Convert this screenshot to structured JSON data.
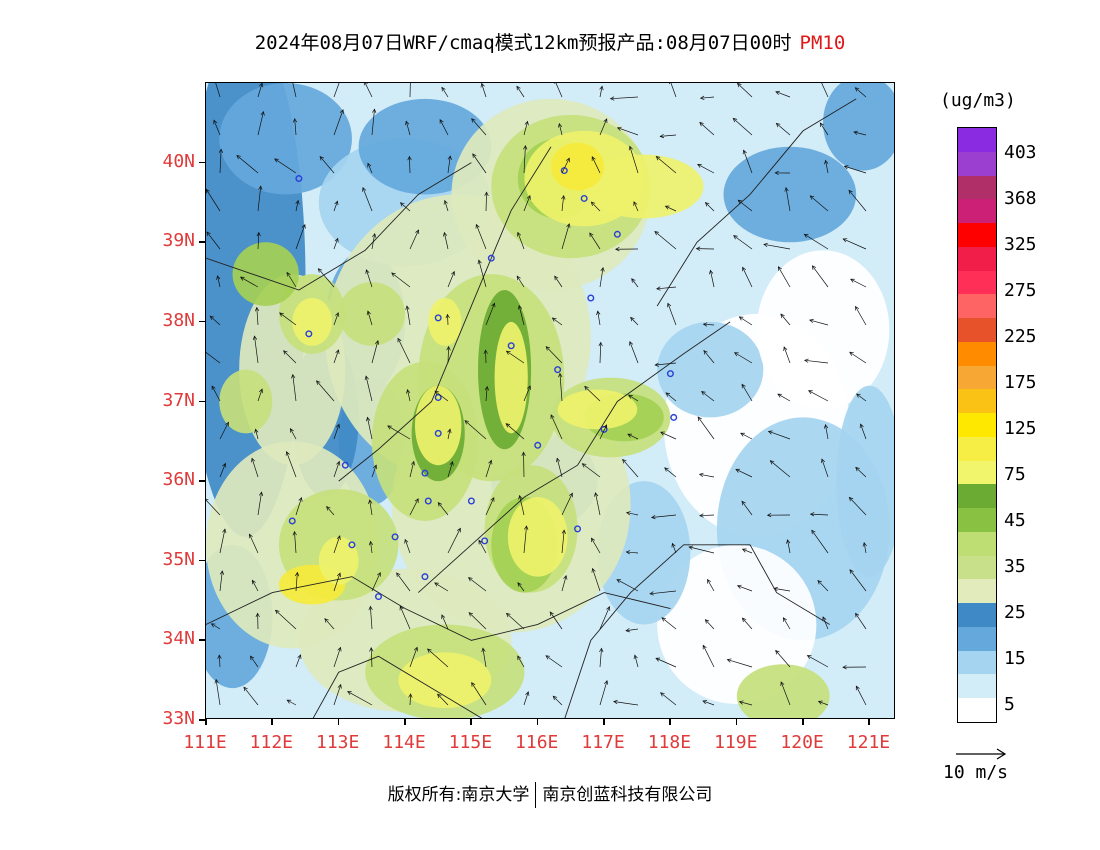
{
  "title": {
    "text": "2024年08月07日WRF/cmaq模式12km预报产品:08月07日00时",
    "variable": "PM10"
  },
  "map": {
    "lat_labels": [
      "40N",
      "39N",
      "38N",
      "37N",
      "36N",
      "35N",
      "34N",
      "33N"
    ],
    "lon_labels": [
      "111E",
      "112E",
      "113E",
      "114E",
      "115E",
      "116E",
      "117E",
      "118E",
      "119E",
      "120E",
      "121E"
    ],
    "lon_range": [
      111,
      121.4
    ],
    "lat_range": [
      33,
      41
    ],
    "colors": {
      "background": "#ffffff",
      "light_blue": "#d2ecf8",
      "mid_blue": "#a5d4f0",
      "blue": "#64a8dc",
      "dark_blue": "#3f89c6",
      "pale_green": "#dde9bd",
      "light_green": "#c5e07c",
      "green": "#a4d055",
      "dark_green": "#6bab33",
      "yellow_green": "#eef26b",
      "yellow": "#f5ea3c"
    }
  },
  "legend": {
    "unit": "(ug/m3)",
    "labels": [
      "403",
      "368",
      "325",
      "275",
      "225",
      "175",
      "125",
      "75",
      "45",
      "35",
      "25",
      "15",
      "5"
    ],
    "colors": [
      "#8a2be2",
      "#9a3fcf",
      "#b02f68",
      "#cc2077",
      "#ff0000",
      "#f11e4a",
      "#ff2f58",
      "#ff6464",
      "#e8522a",
      "#ff8c00",
      "#f7a733",
      "#f9c214",
      "#ffe800",
      "#f7ee45",
      "#f0f56b",
      "#6bab33",
      "#89c242",
      "#bedd73",
      "#c8e08a",
      "#e2ebbc",
      "#3f89c6",
      "#64a8dc",
      "#a5d4f0",
      "#d2ecf8",
      "#ffffff"
    ]
  },
  "wind_key": {
    "label": "10 m/s"
  },
  "footer": {
    "left": "版权所有:南京大学",
    "right": "南京创蓝科技有限公司"
  }
}
